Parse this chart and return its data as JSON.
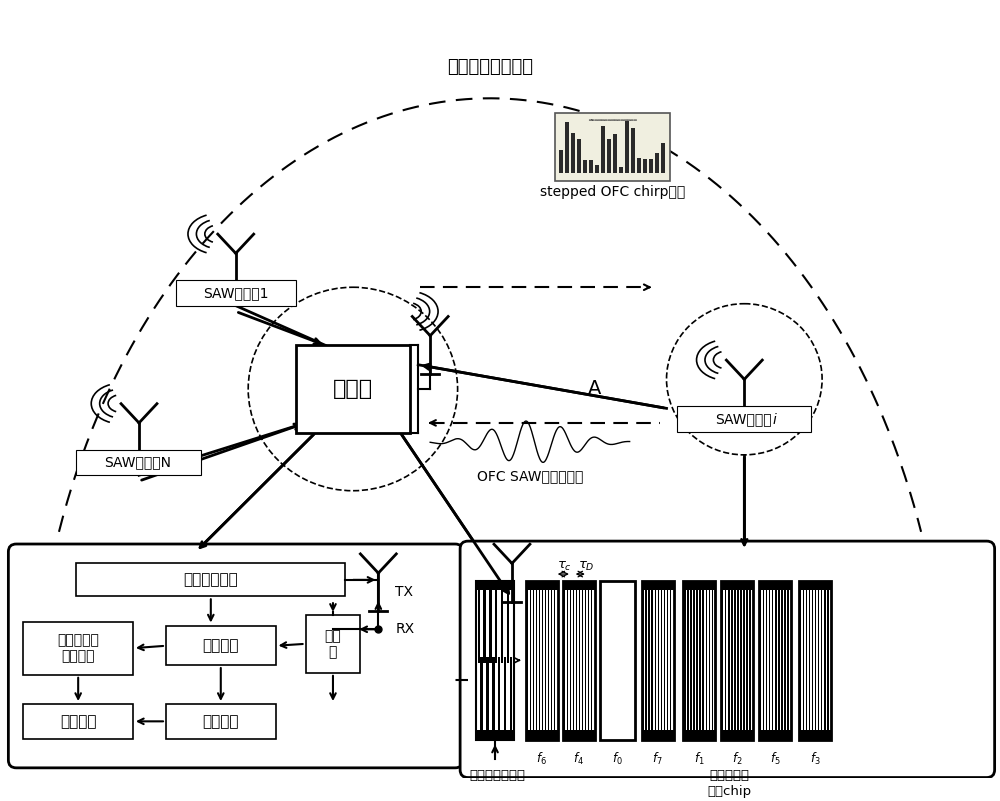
{
  "bg_color": "#ffffff",
  "env_label": "复杂电磁干扰环境",
  "reader_label": "阅读器",
  "sensor1_label": "SAW传感器1",
  "sensorN_label": "SAW传感器N",
  "sensorI_label": "SAW传感器",
  "signal_label": "stepped OFC chirp信号",
  "echo_label": "OFC SAW传感器回波",
  "point_A": "A",
  "tx_label": "TX",
  "rx_label": "RX",
  "box_upconv": "上调频及编码",
  "box_corr": "相关运算",
  "box_down": "下调\n频",
  "box_multi": "多用户检测\n（解码）",
  "box_temp": "温度检测",
  "box_freqest": "频偏估计",
  "transducer_label": "单向叉指换能器",
  "chip_label": "频率正交反\n射栅chip",
  "freq_labels": [
    "f_6",
    "f_4",
    "f_0",
    "f_7",
    "f_1",
    "f_2",
    "f_5",
    "f_3"
  ]
}
